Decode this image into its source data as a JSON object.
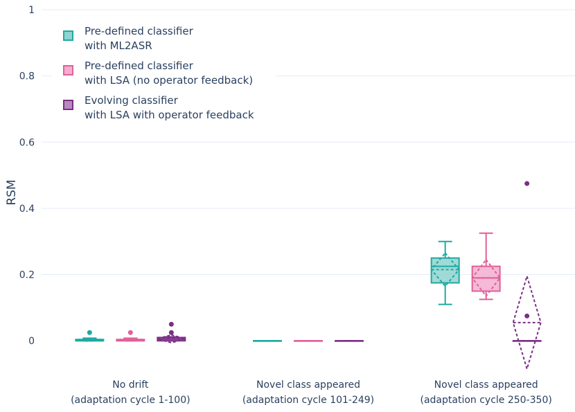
{
  "chart_data": {
    "type": "box",
    "title": "",
    "ylabel": "RSM",
    "xlabel": "",
    "ylim": [
      -0.1,
      1.0
    ],
    "yticks": [
      0,
      0.2,
      0.4,
      0.6,
      0.8,
      1
    ],
    "ytick_labels": [
      "0",
      "0.2",
      "0.4",
      "0.6",
      "0.8",
      "1"
    ],
    "grid": true,
    "legend_position": "top-left",
    "categories": [
      [
        "No drift",
        "(adaptation cycle 1-100)"
      ],
      [
        "Novel class appeared",
        "(adaptation cycle 101-249)"
      ],
      [
        "Novel class appeared",
        "(adaptation cycle 250-350)"
      ]
    ],
    "series": [
      {
        "name": [
          "Pre-defined classifier",
          "with ML2ASR"
        ],
        "color": "#1fa9a0",
        "fill": "#8fd4cf",
        "boxes": [
          {
            "q1": 0,
            "median": 0,
            "q3": 0.004,
            "lower": 0,
            "upper": 0.008,
            "mean": 0.003,
            "sd": 0.004,
            "outliers": [
              0.025
            ]
          },
          {
            "q1": 0,
            "median": 0,
            "q3": 0,
            "lower": 0,
            "upper": 0,
            "mean": 0,
            "sd": 0,
            "outliers": []
          },
          {
            "q1": 0.175,
            "median": 0.225,
            "q3": 0.25,
            "lower": 0.11,
            "upper": 0.3,
            "mean": 0.215,
            "sd": 0.05,
            "outliers": []
          }
        ]
      },
      {
        "name": [
          "Pre-defined classifier",
          "with LSA (no operator feedback)"
        ],
        "color": "#e0609a",
        "fill": "#f3aece",
        "boxes": [
          {
            "q1": 0,
            "median": 0,
            "q3": 0.004,
            "lower": 0,
            "upper": 0.008,
            "mean": 0.003,
            "sd": 0.004,
            "outliers": [
              0.025
            ]
          },
          {
            "q1": 0,
            "median": 0,
            "q3": 0,
            "lower": 0,
            "upper": 0,
            "mean": 0,
            "sd": 0,
            "outliers": []
          },
          {
            "q1": 0.15,
            "median": 0.19,
            "q3": 0.225,
            "lower": 0.125,
            "upper": 0.325,
            "mean": 0.19,
            "sd": 0.055,
            "outliers": []
          }
        ]
      },
      {
        "name": [
          "Evolving classifier",
          "with LSA with operator feedback"
        ],
        "color": "#7b2f86",
        "fill": "#b58bbd",
        "boxes": [
          {
            "q1": 0,
            "median": 0.005,
            "q3": 0.01,
            "lower": 0,
            "upper": 0.012,
            "mean": 0.006,
            "sd": 0.012,
            "outliers": [
              0.025,
              0.05
            ]
          },
          {
            "q1": 0,
            "median": 0,
            "q3": 0,
            "lower": 0,
            "upper": 0,
            "mean": 0,
            "sd": 0,
            "outliers": []
          },
          {
            "q1": 0,
            "median": 0,
            "q3": 0,
            "lower": 0,
            "upper": 0,
            "mean": 0.055,
            "sd": 0.14,
            "outliers": [
              0.075,
              0.475
            ]
          }
        ]
      }
    ]
  }
}
